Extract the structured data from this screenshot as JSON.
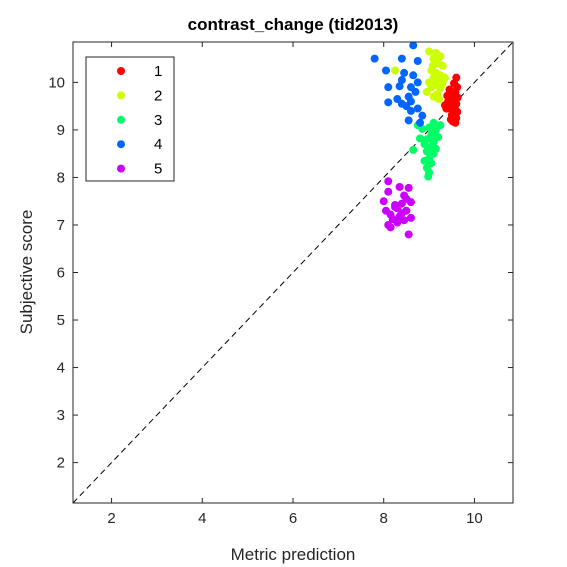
{
  "chart_data": {
    "type": "scatter",
    "title": "contrast_change (tid2013)",
    "xlabel": "Metric prediction",
    "ylabel": "Subjective score",
    "xlim": [
      1.15,
      10.85
    ],
    "ylim": [
      1.15,
      10.85
    ],
    "xticks": [
      2,
      4,
      6,
      8,
      10
    ],
    "yticks": [
      2,
      3,
      4,
      5,
      6,
      7,
      8,
      9,
      10
    ],
    "grid": false,
    "box": true,
    "reference_line": {
      "style": "dashed",
      "color": "#000000",
      "from": [
        1.15,
        1.15
      ],
      "to": [
        10.85,
        10.85
      ]
    },
    "legend": {
      "placement": "top-left"
    },
    "series": [
      {
        "name": "1",
        "color": "#ff0000",
        "points": [
          [
            9.6,
            10.1
          ],
          [
            9.55,
            9.98
          ],
          [
            9.62,
            9.9
          ],
          [
            9.45,
            9.85
          ],
          [
            9.58,
            9.8
          ],
          [
            9.5,
            9.75
          ],
          [
            9.4,
            9.72
          ],
          [
            9.63,
            9.68
          ],
          [
            9.55,
            9.62
          ],
          [
            9.48,
            9.58
          ],
          [
            9.6,
            9.55
          ],
          [
            9.52,
            9.5
          ],
          [
            9.45,
            9.46
          ],
          [
            9.38,
            9.45
          ],
          [
            9.58,
            9.42
          ],
          [
            9.62,
            9.38
          ],
          [
            9.5,
            9.32
          ],
          [
            9.55,
            9.28
          ],
          [
            9.6,
            9.25
          ],
          [
            9.48,
            9.22
          ],
          [
            9.52,
            9.18
          ],
          [
            9.58,
            9.15
          ],
          [
            9.42,
            9.6
          ],
          [
            9.35,
            9.52
          ]
        ]
      },
      {
        "name": "2",
        "color": "#ccff00",
        "points": [
          [
            9.0,
            10.65
          ],
          [
            9.15,
            10.62
          ],
          [
            9.25,
            10.55
          ],
          [
            9.1,
            10.5
          ],
          [
            9.2,
            10.4
          ],
          [
            9.3,
            10.35
          ],
          [
            8.25,
            10.25
          ],
          [
            9.05,
            10.25
          ],
          [
            9.15,
            10.2
          ],
          [
            9.25,
            10.15
          ],
          [
            9.1,
            10.1
          ],
          [
            9.2,
            10.05
          ],
          [
            9.0,
            10.0
          ],
          [
            9.3,
            10.0
          ],
          [
            9.15,
            9.95
          ],
          [
            9.05,
            9.9
          ],
          [
            9.25,
            9.88
          ],
          [
            8.95,
            9.8
          ],
          [
            9.18,
            9.75
          ],
          [
            9.1,
            9.7
          ],
          [
            9.22,
            9.65
          ],
          [
            9.28,
            9.95
          ],
          [
            9.08,
            10.35
          ],
          [
            9.35,
            10.1
          ]
        ]
      },
      {
        "name": "3",
        "color": "#00ff66",
        "points": [
          [
            9.1,
            9.15
          ],
          [
            9.25,
            9.1
          ],
          [
            9.0,
            9.05
          ],
          [
            9.15,
            9.0
          ],
          [
            9.05,
            8.9
          ],
          [
            9.2,
            8.85
          ],
          [
            8.95,
            8.8
          ],
          [
            9.1,
            8.75
          ],
          [
            8.9,
            8.7
          ],
          [
            9.05,
            8.65
          ],
          [
            9.15,
            8.6
          ],
          [
            8.65,
            8.58
          ],
          [
            8.95,
            8.55
          ],
          [
            9.1,
            8.5
          ],
          [
            9.0,
            8.4
          ],
          [
            8.9,
            8.35
          ],
          [
            9.05,
            8.3
          ],
          [
            8.95,
            8.2
          ],
          [
            9.0,
            8.1
          ],
          [
            8.98,
            8.02
          ],
          [
            9.12,
            8.92
          ],
          [
            8.85,
            9.02
          ],
          [
            8.8,
            8.82
          ],
          [
            8.75,
            9.1
          ]
        ]
      },
      {
        "name": "4",
        "color": "#0066ff",
        "points": [
          [
            8.65,
            10.78
          ],
          [
            7.8,
            10.5
          ],
          [
            8.4,
            10.5
          ],
          [
            8.75,
            10.45
          ],
          [
            8.05,
            10.25
          ],
          [
            8.45,
            10.2
          ],
          [
            8.65,
            10.15
          ],
          [
            8.4,
            10.05
          ],
          [
            8.75,
            10.0
          ],
          [
            8.1,
            9.9
          ],
          [
            8.6,
            9.9
          ],
          [
            8.7,
            9.8
          ],
          [
            8.55,
            9.7
          ],
          [
            8.3,
            9.65
          ],
          [
            8.6,
            9.6
          ],
          [
            8.1,
            9.58
          ],
          [
            8.4,
            9.55
          ],
          [
            8.5,
            9.5
          ],
          [
            8.75,
            9.45
          ],
          [
            8.6,
            9.4
          ],
          [
            8.85,
            9.3
          ],
          [
            8.55,
            9.2
          ],
          [
            8.8,
            9.15
          ],
          [
            8.35,
            9.92
          ]
        ]
      },
      {
        "name": "5",
        "color": "#cc00ff",
        "points": [
          [
            8.1,
            7.92
          ],
          [
            8.35,
            7.8
          ],
          [
            8.55,
            7.78
          ],
          [
            8.1,
            7.7
          ],
          [
            8.5,
            7.55
          ],
          [
            8.6,
            7.48
          ],
          [
            8.4,
            7.45
          ],
          [
            8.25,
            7.42
          ],
          [
            8.3,
            7.35
          ],
          [
            8.05,
            7.3
          ],
          [
            8.5,
            7.3
          ],
          [
            8.4,
            7.25
          ],
          [
            8.15,
            7.22
          ],
          [
            8.35,
            7.18
          ],
          [
            8.2,
            7.12
          ],
          [
            8.45,
            7.1
          ],
          [
            8.3,
            7.05
          ],
          [
            8.1,
            7.0
          ],
          [
            8.15,
            6.95
          ],
          [
            8.55,
            6.8
          ],
          [
            8.25,
            7.38
          ],
          [
            8.6,
            7.15
          ],
          [
            8.0,
            7.5
          ],
          [
            8.45,
            7.62
          ]
        ]
      }
    ]
  }
}
